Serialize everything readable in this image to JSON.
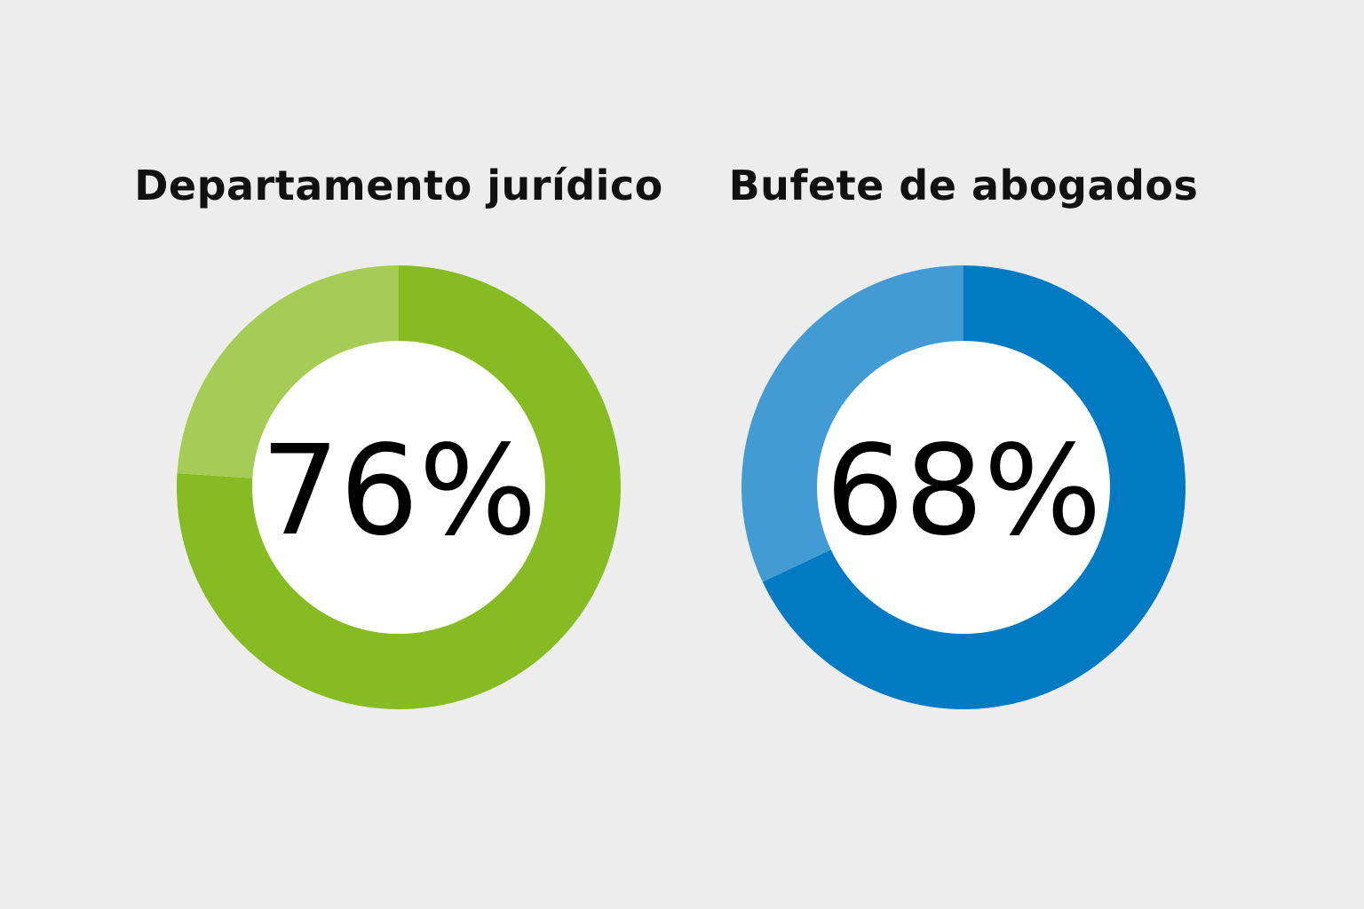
{
  "chart_data": [
    {
      "type": "pie",
      "variant": "donut",
      "title": "Departamento jurídico",
      "value_label": "76%",
      "values": [
        76,
        24
      ],
      "colors": [
        "#86bc21",
        "#a5cd55"
      ]
    },
    {
      "type": "pie",
      "variant": "donut",
      "title": "Bufete de abogados",
      "value_label": "68%",
      "values": [
        68,
        32
      ],
      "colors": [
        "#007ac3",
        "#429bd3"
      ]
    }
  ],
  "background": "#ededed"
}
